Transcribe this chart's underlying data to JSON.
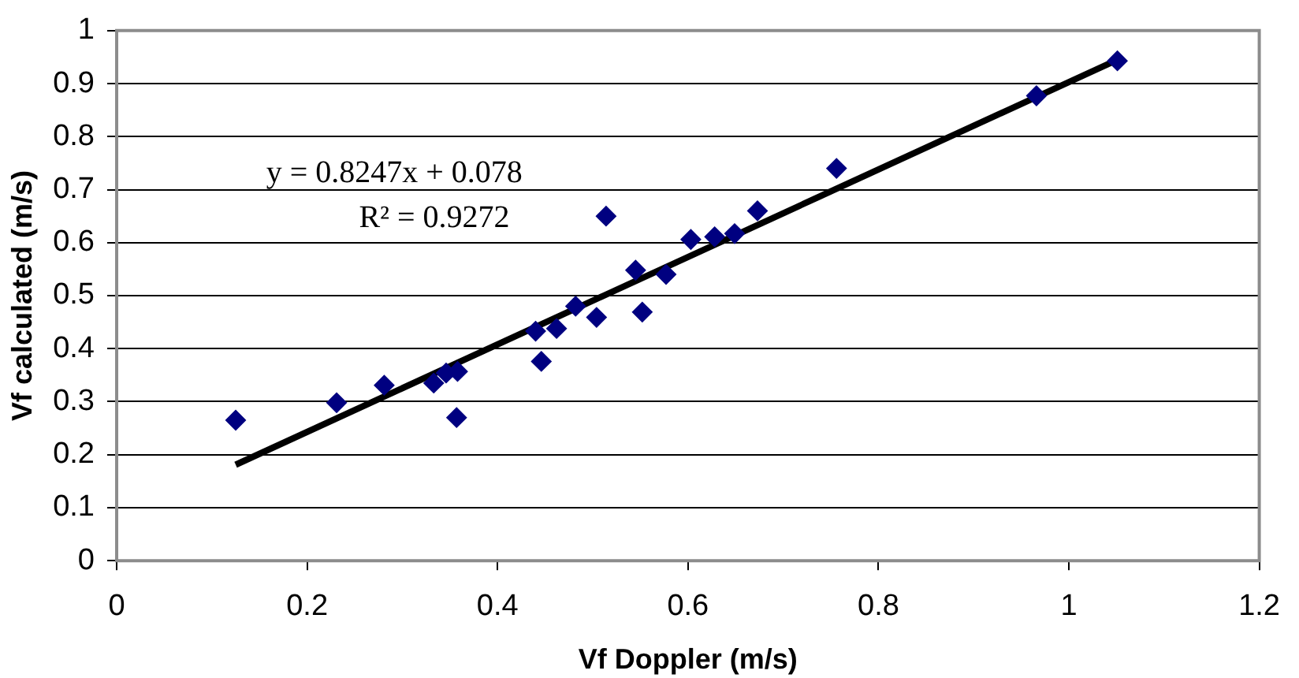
{
  "chart_data": {
    "type": "scatter",
    "xlabel": "Vf Doppler (m/s)",
    "ylabel": "Vf calculated (m/s)",
    "xlim": [
      0,
      1.2
    ],
    "xticks": [
      0,
      0.2,
      0.4,
      0.6,
      0.8,
      1,
      1.2
    ],
    "ylim": [
      0,
      1
    ],
    "yticks": [
      0,
      0.1,
      0.2,
      0.3,
      0.4,
      0.5,
      0.6,
      0.7,
      0.8,
      0.9,
      1
    ],
    "grid": "y",
    "legend": false,
    "annotations": [
      "y = 0.8247x + 0.078",
      "R² = 0.9272"
    ],
    "series": [
      {
        "color": "#000080",
        "marker": "diamond",
        "x": [
          0.125,
          0.231,
          0.281,
          0.333,
          0.346,
          0.358,
          0.357,
          0.44,
          0.462,
          0.446,
          0.482,
          0.504,
          0.514,
          0.545,
          0.552,
          0.577,
          0.603,
          0.628,
          0.649,
          0.673,
          0.756,
          0.966,
          1.051
        ],
        "values": [
          0.265,
          0.298,
          0.331,
          0.335,
          0.354,
          0.357,
          0.27,
          0.433,
          0.438,
          0.376,
          0.48,
          0.459,
          0.65,
          0.548,
          0.469,
          0.54,
          0.606,
          0.611,
          0.617,
          0.66,
          0.74,
          0.877,
          0.943
        ]
      },
      {
        "type": "line",
        "marker": "none",
        "color": "#000000",
        "x": [
          0.125,
          1.051
        ],
        "values": [
          0.181,
          0.945
        ]
      }
    ]
  }
}
